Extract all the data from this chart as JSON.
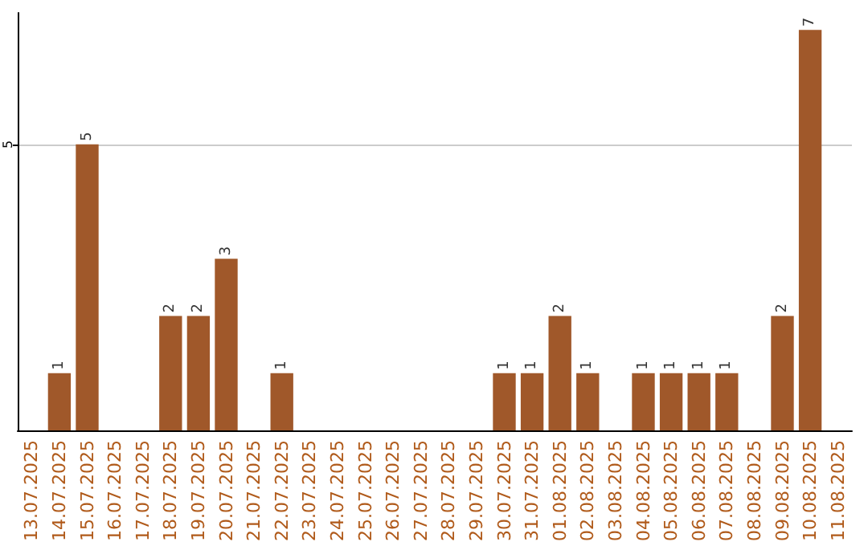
{
  "chart_data": {
    "type": "bar",
    "categories": [
      "13.07.2025",
      "14.07.2025",
      "15.07.2025",
      "16.07.2025",
      "17.07.2025",
      "18.07.2025",
      "19.07.2025",
      "20.07.2025",
      "21.07.2025",
      "22.07.2025",
      "23.07.2025",
      "24.07.2025",
      "25.07.2025",
      "26.07.2025",
      "27.07.2025",
      "28.07.2025",
      "29.07.2025",
      "30.07.2025",
      "31.07.2025",
      "01.08.2025",
      "02.08.2025",
      "03.08.2025",
      "04.08.2025",
      "05.08.2025",
      "06.08.2025",
      "07.08.2025",
      "08.08.2025",
      "09.08.2025",
      "10.08.2025",
      "11.08.2025"
    ],
    "values": [
      0,
      1,
      5,
      0,
      0,
      2,
      2,
      3,
      0,
      1,
      0,
      0,
      0,
      0,
      0,
      0,
      0,
      1,
      1,
      2,
      1,
      0,
      1,
      1,
      1,
      1,
      0,
      2,
      7,
      0
    ],
    "value_labels": [
      null,
      "1",
      "5",
      null,
      null,
      "2",
      "2",
      "3",
      null,
      "1",
      null,
      null,
      null,
      null,
      null,
      null,
      null,
      "1",
      "1",
      "2",
      "1",
      null,
      "1",
      "1",
      "1",
      "1",
      null,
      "2",
      "7",
      null
    ],
    "color": "#a0582a",
    "ylim": [
      0,
      7.3
    ],
    "yticks": [
      5
    ],
    "grid": "y"
  }
}
